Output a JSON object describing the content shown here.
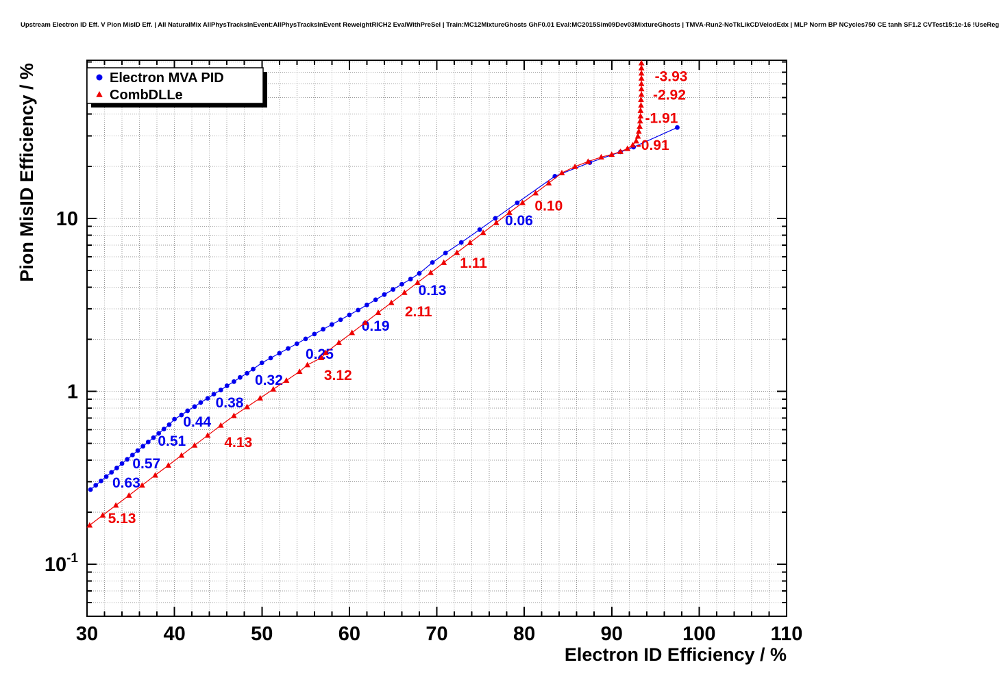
{
  "header": {
    "title": "Upstream Electron ID Eff. V Pion MisID Eff. | All NaturalMix AllPhysTracksInEvent:AllPhysTracksInEvent ReweightRICH2 EvalWithPreSel | Train:MC12MixtureGhosts GhF0.01 Eval:MC2015Sim09Dev03MixtureGhosts | TMVA-Run2-NoTkLikCDVelodEdx | MLP Norm BP NCycles750 CE tanh SF1.2 CVTest15:1e-16 !UseReg"
  },
  "chart_data": {
    "type": "scatter",
    "xlabel": "Electron ID Efficiency / %",
    "ylabel": "Pion MisID Efficiency / %",
    "x_range": [
      30,
      110
    ],
    "y_range": [
      0.05,
      82
    ],
    "y_scale": "log",
    "grid": true,
    "x_major_ticks": [
      30,
      40,
      50,
      60,
      70,
      80,
      90,
      100,
      110
    ],
    "x_minor_step": 2,
    "y_major_ticks": [
      {
        "value": 0.1,
        "mantissa": "10",
        "exponent": "-1"
      },
      {
        "value": 1,
        "label": "1"
      },
      {
        "value": 10,
        "label": "10"
      }
    ],
    "colors": {
      "blue": "#0000ee",
      "red": "#ee0000",
      "grid": "#999999",
      "frame": "#000000"
    },
    "legend": {
      "position": "top-left",
      "entries": [
        {
          "label": "Electron MVA PID",
          "marker": "circle",
          "color": "#0000ee"
        },
        {
          "label": "CombDLLe",
          "marker": "triangle",
          "color": "#ee0000"
        }
      ]
    },
    "series": [
      {
        "name": "Electron MVA PID",
        "color": "#0000ee",
        "marker": "circle",
        "points": [
          [
            30.4,
            0.27
          ],
          [
            31.0,
            0.286
          ],
          [
            31.6,
            0.303
          ],
          [
            32.2,
            0.321
          ],
          [
            32.8,
            0.34
          ],
          [
            33.4,
            0.36
          ],
          [
            34.0,
            0.382
          ],
          [
            34.6,
            0.404
          ],
          [
            35.2,
            0.428
          ],
          [
            35.8,
            0.454
          ],
          [
            36.4,
            0.481
          ],
          [
            37.0,
            0.509
          ],
          [
            37.6,
            0.539
          ],
          [
            38.2,
            0.571
          ],
          [
            38.8,
            0.605
          ],
          [
            39.4,
            0.641
          ],
          [
            40.0,
            0.69
          ],
          [
            40.8,
            0.729
          ],
          [
            41.5,
            0.771
          ],
          [
            42.3,
            0.815
          ],
          [
            43.0,
            0.861
          ],
          [
            43.8,
            0.91
          ],
          [
            44.5,
            0.962
          ],
          [
            45.3,
            1.017
          ],
          [
            46.0,
            1.075
          ],
          [
            46.8,
            1.137
          ],
          [
            47.5,
            1.202
          ],
          [
            48.3,
            1.27
          ],
          [
            49.0,
            1.343
          ],
          [
            50.0,
            1.46
          ],
          [
            51.0,
            1.556
          ],
          [
            52.0,
            1.659
          ],
          [
            53.0,
            1.768
          ],
          [
            54.0,
            1.885
          ],
          [
            55.0,
            2.009
          ],
          [
            56.0,
            2.141
          ],
          [
            57.0,
            2.282
          ],
          [
            58.0,
            2.433
          ],
          [
            59.0,
            2.593
          ],
          [
            60.0,
            2.764
          ],
          [
            61.0,
            2.946
          ],
          [
            62.0,
            3.156
          ],
          [
            63.0,
            3.381
          ],
          [
            64.0,
            3.622
          ],
          [
            65.0,
            3.88
          ],
          [
            66.0,
            4.157
          ],
          [
            67.0,
            4.453
          ],
          [
            68.0,
            4.8
          ],
          [
            69.5,
            5.55
          ],
          [
            71.0,
            6.3
          ],
          [
            72.8,
            7.25
          ],
          [
            74.9,
            8.6
          ],
          [
            76.7,
            10.0
          ],
          [
            79.2,
            12.3
          ],
          [
            83.5,
            17.5
          ],
          [
            87.5,
            21.0
          ],
          [
            91.0,
            24.2
          ],
          [
            92.5,
            25.8
          ],
          [
            97.5,
            33.5
          ]
        ],
        "cut_labels": [
          {
            "text": "0.63",
            "x": 34.5,
            "y": 0.296
          },
          {
            "text": "0.57",
            "x": 36.8,
            "y": 0.381
          },
          {
            "text": "0.51",
            "x": 39.7,
            "y": 0.515
          },
          {
            "text": "0.44",
            "x": 42.6,
            "y": 0.666
          },
          {
            "text": "0.38",
            "x": 46.3,
            "y": 0.86
          },
          {
            "text": "0.32",
            "x": 50.8,
            "y": 1.163
          },
          {
            "text": "0.25",
            "x": 56.6,
            "y": 1.644
          },
          {
            "text": "0.19",
            "x": 63.0,
            "y": 2.389
          },
          {
            "text": "0.13",
            "x": 69.5,
            "y": 3.836
          },
          {
            "text": "0.06",
            "x": 79.4,
            "y": 9.73
          }
        ]
      },
      {
        "name": "CombDLLe",
        "color": "#ee0000",
        "marker": "triangle",
        "points": [
          [
            30.3,
            0.168
          ],
          [
            31.8,
            0.192
          ],
          [
            33.3,
            0.219
          ],
          [
            34.8,
            0.25
          ],
          [
            36.3,
            0.286
          ],
          [
            37.8,
            0.327
          ],
          [
            39.3,
            0.373
          ],
          [
            40.8,
            0.426
          ],
          [
            42.3,
            0.487
          ],
          [
            43.8,
            0.556
          ],
          [
            45.3,
            0.635
          ],
          [
            46.8,
            0.722
          ],
          [
            48.3,
            0.812
          ],
          [
            49.8,
            0.913
          ],
          [
            51.3,
            1.027
          ],
          [
            52.8,
            1.155
          ],
          [
            54.3,
            1.299
          ],
          [
            55.2,
            1.42
          ],
          [
            56.8,
            1.56
          ],
          [
            57.3,
            1.67
          ],
          [
            58.8,
            1.91
          ],
          [
            60.3,
            2.18
          ],
          [
            61.8,
            2.49
          ],
          [
            63.3,
            2.85
          ],
          [
            64.8,
            3.25
          ],
          [
            66.3,
            3.72
          ],
          [
            67.8,
            4.25
          ],
          [
            69.3,
            4.85
          ],
          [
            70.8,
            5.55
          ],
          [
            72.3,
            6.33
          ],
          [
            73.8,
            7.23
          ],
          [
            75.3,
            8.26
          ],
          [
            76.8,
            9.43
          ],
          [
            78.3,
            10.8
          ],
          [
            79.8,
            12.3
          ],
          [
            81.3,
            14.0
          ],
          [
            82.8,
            16.0
          ],
          [
            84.3,
            18.3
          ],
          [
            85.8,
            19.9
          ],
          [
            87.3,
            21.3
          ],
          [
            88.8,
            22.6
          ],
          [
            90.0,
            23.4
          ],
          [
            91.0,
            24.3
          ],
          [
            91.8,
            25.3
          ],
          [
            92.4,
            26.5
          ],
          [
            92.8,
            28.0
          ],
          [
            93.0,
            29.8
          ],
          [
            93.1,
            31.8
          ],
          [
            93.2,
            34.0
          ],
          [
            93.25,
            36.5
          ],
          [
            93.3,
            39.0
          ],
          [
            93.3,
            42.0
          ],
          [
            93.35,
            45.0
          ],
          [
            93.35,
            48.5
          ],
          [
            93.4,
            52.0
          ],
          [
            93.4,
            56.0
          ],
          [
            93.4,
            60.0
          ],
          [
            93.4,
            64.5
          ],
          [
            93.4,
            69.0
          ],
          [
            93.4,
            74.0
          ],
          [
            93.4,
            79.0
          ]
        ],
        "cut_labels": [
          {
            "text": "5.13",
            "x": 34.0,
            "y": 0.184
          },
          {
            "text": "4.13",
            "x": 47.3,
            "y": 0.507
          },
          {
            "text": "3.12",
            "x": 58.7,
            "y": 1.239
          },
          {
            "text": "2.11",
            "x": 67.9,
            "y": 2.893
          },
          {
            "text": "1.11",
            "x": 74.2,
            "y": 5.53
          },
          {
            "text": "0.10",
            "x": 82.8,
            "y": 11.8
          },
          {
            "text": "-0.91",
            "x": 94.7,
            "y": 26.5
          },
          {
            "text": "-1.91",
            "x": 95.7,
            "y": 37.9
          },
          {
            "text": "-2.92",
            "x": 96.6,
            "y": 51.7
          },
          {
            "text": "-3.93",
            "x": 96.8,
            "y": 66.1
          }
        ]
      }
    ]
  }
}
